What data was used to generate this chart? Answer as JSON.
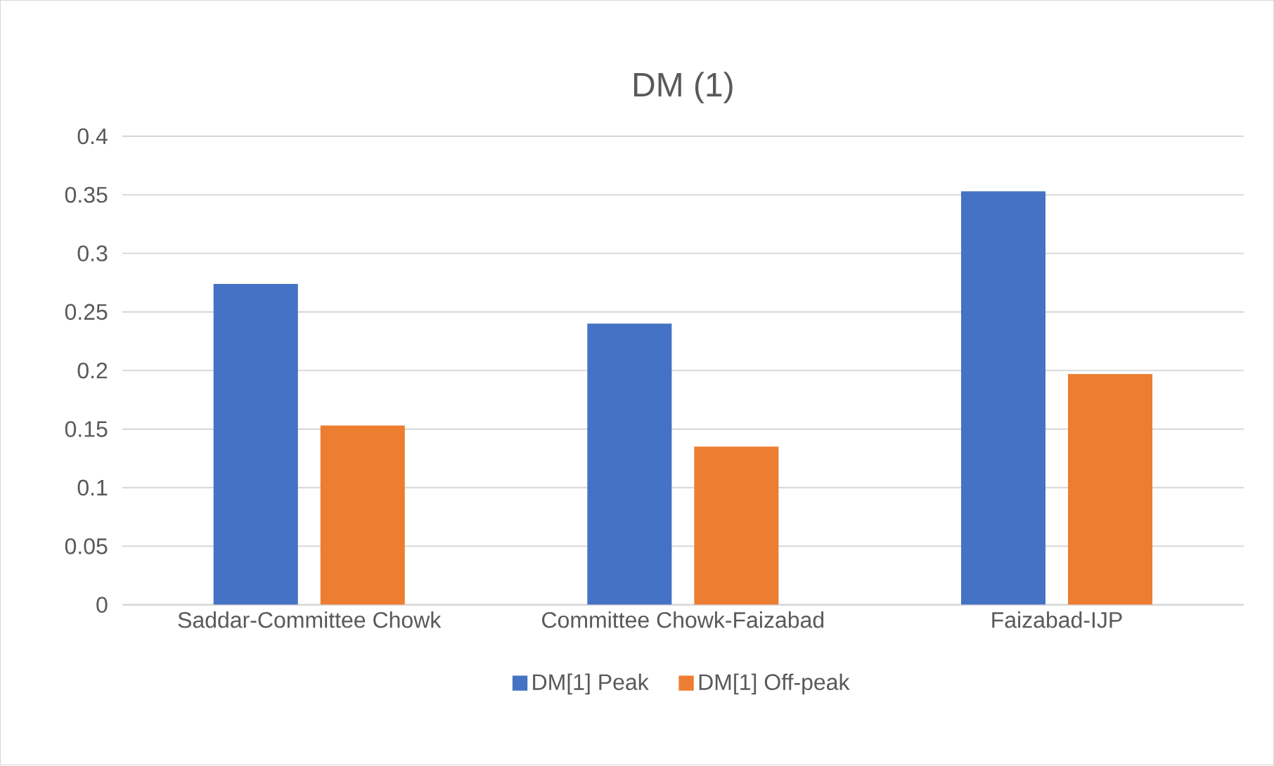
{
  "chart_data": {
    "type": "bar",
    "title": "DM (1)",
    "categories": [
      "Saddar-Committee Chowk",
      "Committee Chowk-Faizabad",
      "Faizabad-IJP"
    ],
    "series": [
      {
        "name": "DM[1] Peak",
        "color": "#4472c4",
        "values": [
          0.274,
          0.24,
          0.353
        ]
      },
      {
        "name": "DM[1] Off-peak",
        "color": "#ed7d31",
        "values": [
          0.153,
          0.135,
          0.197
        ]
      }
    ],
    "ylim": [
      0,
      0.4
    ],
    "yticks": [
      0,
      0.05,
      0.1,
      0.15,
      0.2,
      0.25,
      0.3,
      0.35,
      0.4
    ],
    "grid": "y",
    "legend": "bottom"
  }
}
